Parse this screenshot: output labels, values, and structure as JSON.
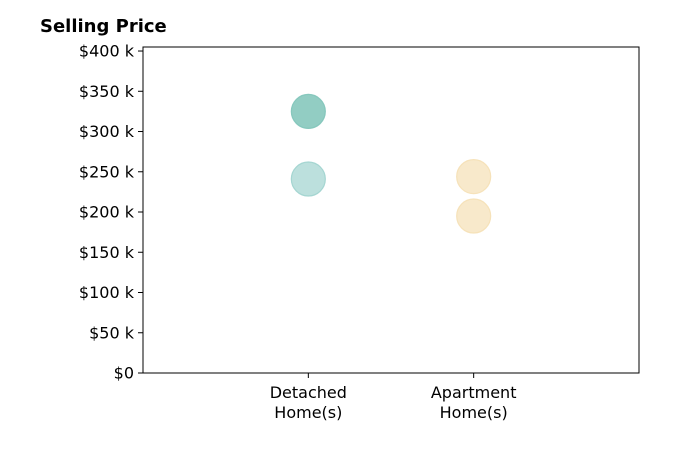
{
  "chart_data": {
    "type": "scatter",
    "title": "Selling Price",
    "xlabel": "",
    "ylabel": "",
    "categories": [
      "Detached\nHome(s)",
      "Apartment\nHome(s)"
    ],
    "y_ticks": [
      0,
      50000,
      100000,
      150000,
      200000,
      250000,
      300000,
      350000,
      400000
    ],
    "y_tick_labels": [
      "$0",
      "$50 k",
      "$100 k",
      "$150 k",
      "$200 k",
      "$250 k",
      "$300 k",
      "$350 k",
      "$400 k"
    ],
    "ylim": [
      0,
      405000
    ],
    "xlim": [
      -1,
      2
    ],
    "grid": false,
    "legend": "none",
    "points": [
      {
        "category": "Detached\nHome(s)",
        "value": 325000,
        "color": "#7fc4b9",
        "opacity": 0.85
      },
      {
        "category": "Detached\nHome(s)",
        "value": 241000,
        "color": "#9fd3ce",
        "opacity": 0.7
      },
      {
        "category": "Apartment\nHome(s)",
        "value": 244000,
        "color": "#f5e0b5",
        "opacity": 0.7
      },
      {
        "category": "Apartment\nHome(s)",
        "value": 195000,
        "color": "#f5e0b5",
        "opacity": 0.7
      }
    ]
  }
}
